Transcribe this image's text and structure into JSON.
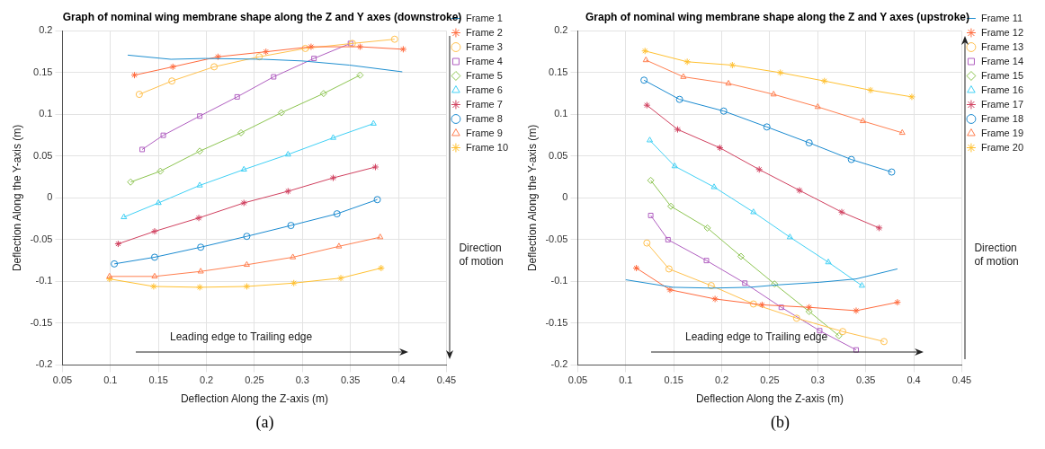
{
  "chart_data": [
    {
      "type": "line",
      "title": "Graph of nominal wing membrane shape along the Z and Y axes (downstroke)",
      "xlabel": "Deflection Along the Z-axis (m)",
      "ylabel": "Deflection Along the Y-axis (m)",
      "xlim": [
        0.05,
        0.45
      ],
      "xticks": [
        0.05,
        0.1,
        0.15,
        0.2,
        0.25,
        0.3,
        0.35,
        0.4,
        0.45
      ],
      "ylim": [
        -0.2,
        0.2
      ],
      "yticks": [
        -0.2,
        -0.15,
        -0.1,
        -0.05,
        0,
        0.05,
        0.1,
        0.15,
        0.2
      ],
      "grid": true,
      "legend": "top right",
      "annotations": [
        "Leading edge to Trailing edge",
        "Direction of motion",
        "(a)"
      ],
      "series": [
        {
          "name": "Frame 1",
          "color": "#1f8fd0",
          "marker": "none",
          "x": [
            0.118,
            0.163,
            0.199,
            0.259,
            0.3,
            0.349,
            0.404
          ],
          "values": [
            0.171,
            0.166,
            0.167,
            0.166,
            0.164,
            0.159,
            0.151
          ]
        },
        {
          "name": "Frame 2",
          "color": "#ff6a3d",
          "marker": "cross",
          "x": [
            0.125,
            0.165,
            0.212,
            0.262,
            0.309,
            0.36,
            0.405
          ],
          "values": [
            0.147,
            0.157,
            0.169,
            0.175,
            0.181,
            0.181,
            0.178
          ]
        },
        {
          "name": "Frame 3",
          "color": "#ffc04d",
          "marker": "circle",
          "x": [
            0.13,
            0.164,
            0.208,
            0.255,
            0.303,
            0.352,
            0.396
          ],
          "values": [
            0.124,
            0.14,
            0.157,
            0.169,
            0.179,
            0.185,
            0.19
          ]
        },
        {
          "name": "Frame 4",
          "color": "#b05fc0",
          "marker": "square",
          "x": [
            0.133,
            0.155,
            0.193,
            0.232,
            0.27,
            0.312,
            0.35
          ],
          "values": [
            0.058,
            0.075,
            0.098,
            0.121,
            0.145,
            0.167,
            0.185
          ]
        },
        {
          "name": "Frame 5",
          "color": "#8cc450",
          "marker": "diamond",
          "x": [
            0.121,
            0.152,
            0.193,
            0.236,
            0.278,
            0.322,
            0.36
          ],
          "values": [
            0.019,
            0.032,
            0.056,
            0.078,
            0.102,
            0.125,
            0.147
          ]
        },
        {
          "name": "Frame 6",
          "color": "#40d0f5",
          "marker": "triangle",
          "x": [
            0.114,
            0.15,
            0.193,
            0.239,
            0.285,
            0.332,
            0.374
          ],
          "values": [
            -0.023,
            -0.006,
            0.015,
            0.034,
            0.052,
            0.072,
            0.089
          ]
        },
        {
          "name": "Frame 7",
          "color": "#d0405f",
          "marker": "cross",
          "x": [
            0.108,
            0.146,
            0.192,
            0.239,
            0.285,
            0.332,
            0.376
          ],
          "values": [
            -0.055,
            -0.04,
            -0.024,
            -0.006,
            0.008,
            0.024,
            0.037
          ]
        },
        {
          "name": "Frame 8",
          "color": "#1a8ad0",
          "marker": "circle",
          "x": [
            0.104,
            0.146,
            0.194,
            0.242,
            0.288,
            0.336,
            0.378
          ],
          "values": [
            -0.079,
            -0.071,
            -0.059,
            -0.046,
            -0.033,
            -0.019,
            -0.002
          ]
        },
        {
          "name": "Frame 9",
          "color": "#ff7f50",
          "marker": "triangle",
          "x": [
            0.099,
            0.146,
            0.194,
            0.242,
            0.29,
            0.338,
            0.381
          ],
          "values": [
            -0.094,
            -0.094,
            -0.088,
            -0.08,
            -0.071,
            -0.058,
            -0.047
          ]
        },
        {
          "name": "Frame 10",
          "color": "#ffc030",
          "marker": "cross",
          "x": [
            0.099,
            0.145,
            0.193,
            0.242,
            0.291,
            0.34,
            0.382
          ],
          "values": [
            -0.097,
            -0.106,
            -0.107,
            -0.106,
            -0.102,
            -0.096,
            -0.084
          ]
        }
      ]
    },
    {
      "type": "line",
      "title": "Graph of nominal wing membrane shape along the Z and Y axes (upstroke)",
      "xlabel": "Deflection Along the Z-axis (m)",
      "ylabel": "Deflection Along the Y-axis (m)",
      "xlim": [
        0.05,
        0.45
      ],
      "xticks": [
        0.05,
        0.1,
        0.15,
        0.2,
        0.25,
        0.3,
        0.35,
        0.4,
        0.45
      ],
      "ylim": [
        -0.2,
        0.2
      ],
      "yticks": [
        -0.2,
        -0.15,
        -0.1,
        -0.05,
        0,
        0.05,
        0.1,
        0.15,
        0.2
      ],
      "grid": true,
      "legend": "top right",
      "annotations": [
        "Leading edge to Trailing edge",
        "Direction of motion",
        "(b)"
      ],
      "series": [
        {
          "name": "Frame 11",
          "color": "#1f8fd0",
          "marker": "none",
          "x": [
            0.1,
            0.149,
            0.19,
            0.229,
            0.26,
            0.302,
            0.34,
            0.383
          ],
          "values": [
            -0.098,
            -0.107,
            -0.108,
            -0.107,
            -0.104,
            -0.101,
            -0.097,
            -0.085
          ]
        },
        {
          "name": "Frame 12",
          "color": "#ff6a3d",
          "marker": "cross",
          "x": [
            0.111,
            0.146,
            0.193,
            0.242,
            0.291,
            0.34,
            0.383
          ],
          "values": [
            -0.084,
            -0.11,
            -0.121,
            -0.128,
            -0.131,
            -0.135,
            -0.125
          ]
        },
        {
          "name": "Frame 13",
          "color": "#ffc04d",
          "marker": "circle",
          "x": [
            0.122,
            0.145,
            0.189,
            0.233,
            0.278,
            0.326,
            0.369
          ],
          "values": [
            -0.054,
            -0.085,
            -0.105,
            -0.127,
            -0.144,
            -0.16,
            -0.172
          ]
        },
        {
          "name": "Frame 14",
          "color": "#b05fc0",
          "marker": "square",
          "x": [
            0.126,
            0.144,
            0.184,
            0.224,
            0.262,
            0.302,
            0.34
          ],
          "values": [
            -0.021,
            -0.05,
            -0.075,
            -0.102,
            -0.131,
            -0.159,
            -0.182
          ]
        },
        {
          "name": "Frame 15",
          "color": "#8cc450",
          "marker": "diamond",
          "x": [
            0.126,
            0.147,
            0.185,
            0.22,
            0.255,
            0.291,
            0.322
          ],
          "values": [
            0.021,
            -0.01,
            -0.036,
            -0.07,
            -0.103,
            -0.136,
            -0.165
          ]
        },
        {
          "name": "Frame 16",
          "color": "#40d0f5",
          "marker": "triangle",
          "x": [
            0.125,
            0.151,
            0.192,
            0.233,
            0.271,
            0.311,
            0.346
          ],
          "values": [
            0.069,
            0.038,
            0.013,
            -0.017,
            -0.047,
            -0.077,
            -0.105
          ]
        },
        {
          "name": "Frame 17",
          "color": "#d0405f",
          "marker": "cross",
          "x": [
            0.122,
            0.154,
            0.198,
            0.239,
            0.281,
            0.325,
            0.364
          ],
          "values": [
            0.111,
            0.082,
            0.06,
            0.034,
            0.009,
            -0.017,
            -0.036
          ]
        },
        {
          "name": "Frame 18",
          "color": "#1a8ad0",
          "marker": "circle",
          "x": [
            0.119,
            0.156,
            0.202,
            0.247,
            0.291,
            0.335,
            0.377
          ],
          "values": [
            0.141,
            0.118,
            0.104,
            0.085,
            0.066,
            0.046,
            0.031
          ]
        },
        {
          "name": "Frame 19",
          "color": "#ff7f50",
          "marker": "triangle",
          "x": [
            0.121,
            0.16,
            0.207,
            0.254,
            0.3,
            0.347,
            0.388
          ],
          "values": [
            0.165,
            0.145,
            0.137,
            0.124,
            0.109,
            0.092,
            0.078
          ]
        },
        {
          "name": "Frame 20",
          "color": "#ffc030",
          "marker": "cross",
          "x": [
            0.12,
            0.164,
            0.211,
            0.261,
            0.307,
            0.355,
            0.398
          ],
          "values": [
            0.176,
            0.163,
            0.159,
            0.15,
            0.14,
            0.129,
            0.121
          ]
        }
      ]
    }
  ]
}
